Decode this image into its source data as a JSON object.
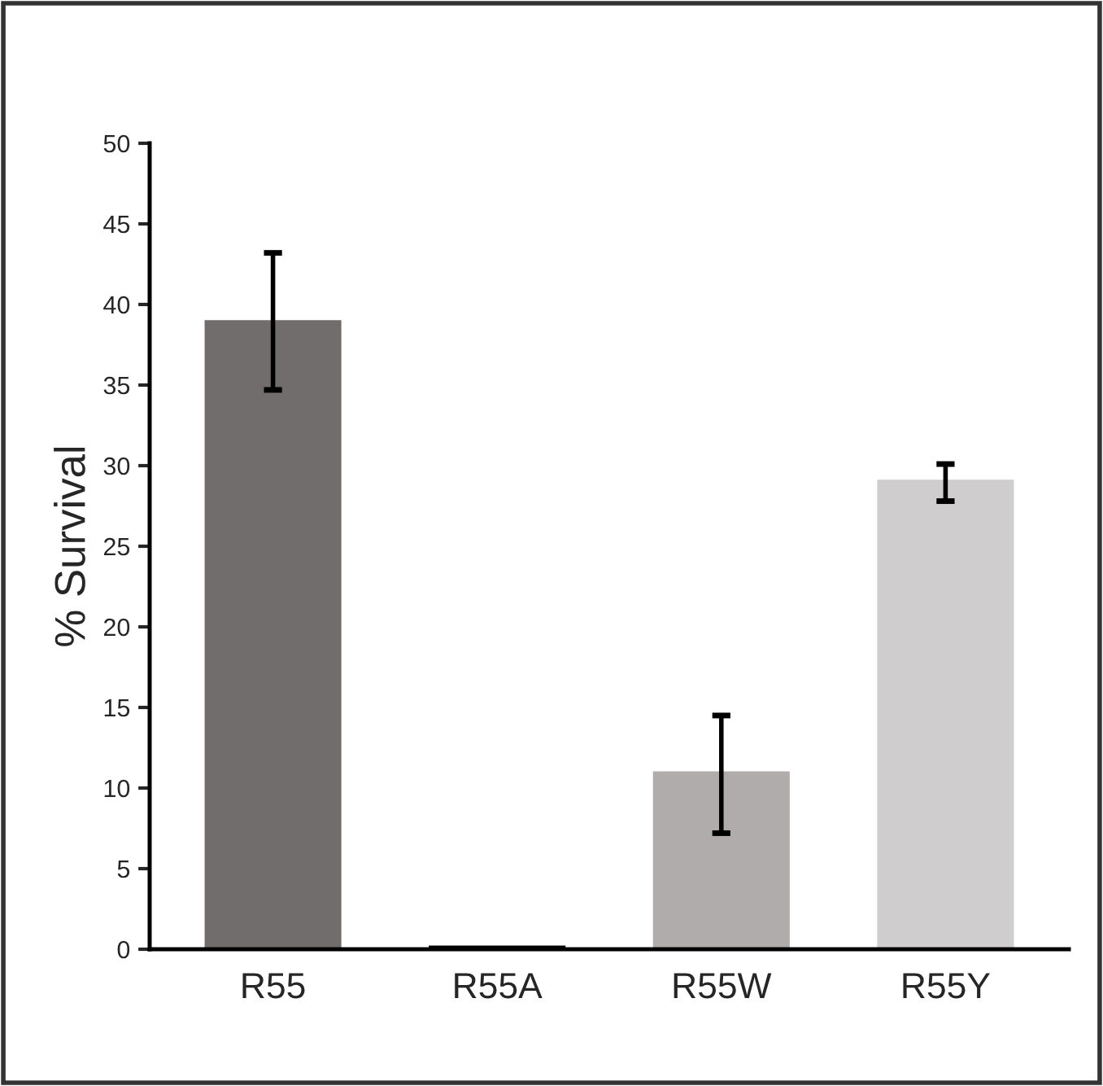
{
  "chart_data": {
    "type": "bar",
    "ylabel": "% Survival",
    "categories": [
      "R55",
      "R55A",
      "R55W",
      "R55Y"
    ],
    "values": [
      39.1,
      0.3,
      11.1,
      29.2
    ],
    "colors": [
      "#716d6c",
      "#000000",
      "#b0acab",
      "#cfcdce"
    ],
    "errors": [
      [
        34.7,
        43.2
      ],
      null,
      [
        7.2,
        14.5
      ],
      [
        27.8,
        30.1
      ]
    ],
    "ylim": [
      0,
      50
    ],
    "yticks": [
      0,
      5,
      10,
      15,
      20,
      25,
      30,
      35,
      40,
      45,
      50
    ],
    "grid": false,
    "legend": false
  }
}
